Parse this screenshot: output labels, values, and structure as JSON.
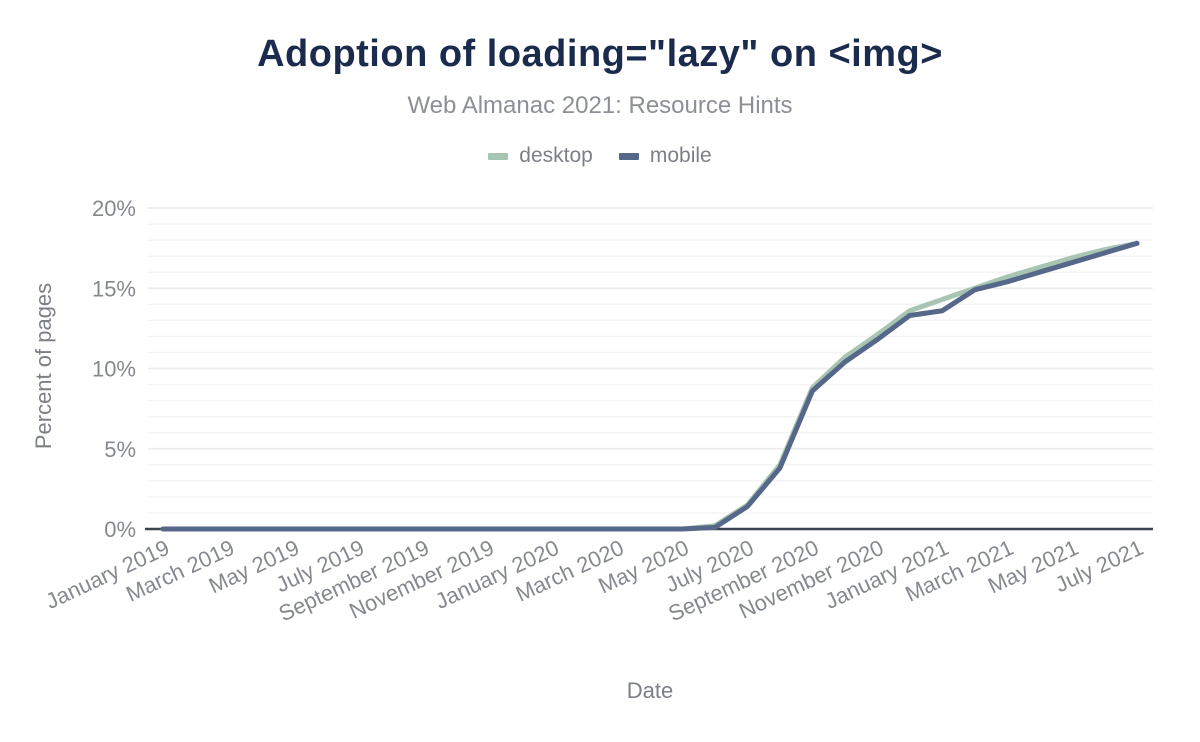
{
  "header": {
    "title": "Adoption of loading=\"lazy\" on <img>",
    "subtitle": "Web Almanac 2021: Resource Hints"
  },
  "chart_data": {
    "type": "line",
    "title": "Adoption of loading=\"lazy\" on <img>",
    "subtitle": "Web Almanac 2021: Resource Hints",
    "xlabel": "Date",
    "ylabel": "Percent of pages",
    "ylim": [
      0,
      20
    ],
    "y_ticks": [
      0,
      5,
      10,
      15,
      20
    ],
    "y_tick_suffix": "%",
    "x_tick_step": 2,
    "grid": "horizontal, minor every 1%, major every 5%",
    "legend_position": "top-center",
    "axis_color": "#3b4252",
    "tick_label_color": "#85898f",
    "categories": [
      "January 2019",
      "February 2019",
      "March 2019",
      "April 2019",
      "May 2019",
      "June 2019",
      "July 2019",
      "August 2019",
      "September 2019",
      "October 2019",
      "November 2019",
      "December 2019",
      "January 2020",
      "February 2020",
      "March 2020",
      "April 2020",
      "May 2020",
      "June 2020",
      "July 2020",
      "August 2020",
      "September 2020",
      "October 2020",
      "November 2020",
      "December 2020",
      "January 2021",
      "February 2021",
      "March 2021",
      "April 2021",
      "May 2021",
      "June 2021",
      "July 2021"
    ],
    "series": [
      {
        "name": "desktop",
        "color": "#a8c5b3",
        "values": [
          0,
          0,
          0,
          0,
          0,
          0,
          0,
          0,
          0,
          0,
          0,
          0,
          0,
          0,
          0,
          0,
          0,
          0.2,
          1.5,
          4.0,
          8.8,
          10.7,
          12.1,
          13.6,
          14.3,
          15.0,
          15.7,
          16.3,
          16.9,
          17.4,
          17.8
        ]
      },
      {
        "name": "mobile",
        "color": "#56688a",
        "values": [
          0,
          0,
          0,
          0,
          0,
          0,
          0,
          0,
          0,
          0,
          0,
          0,
          0,
          0,
          0,
          0,
          0,
          0.1,
          1.4,
          3.8,
          8.6,
          10.4,
          11.8,
          13.3,
          13.6,
          14.9,
          15.4,
          16.0,
          16.6,
          17.2,
          17.8
        ]
      }
    ]
  }
}
